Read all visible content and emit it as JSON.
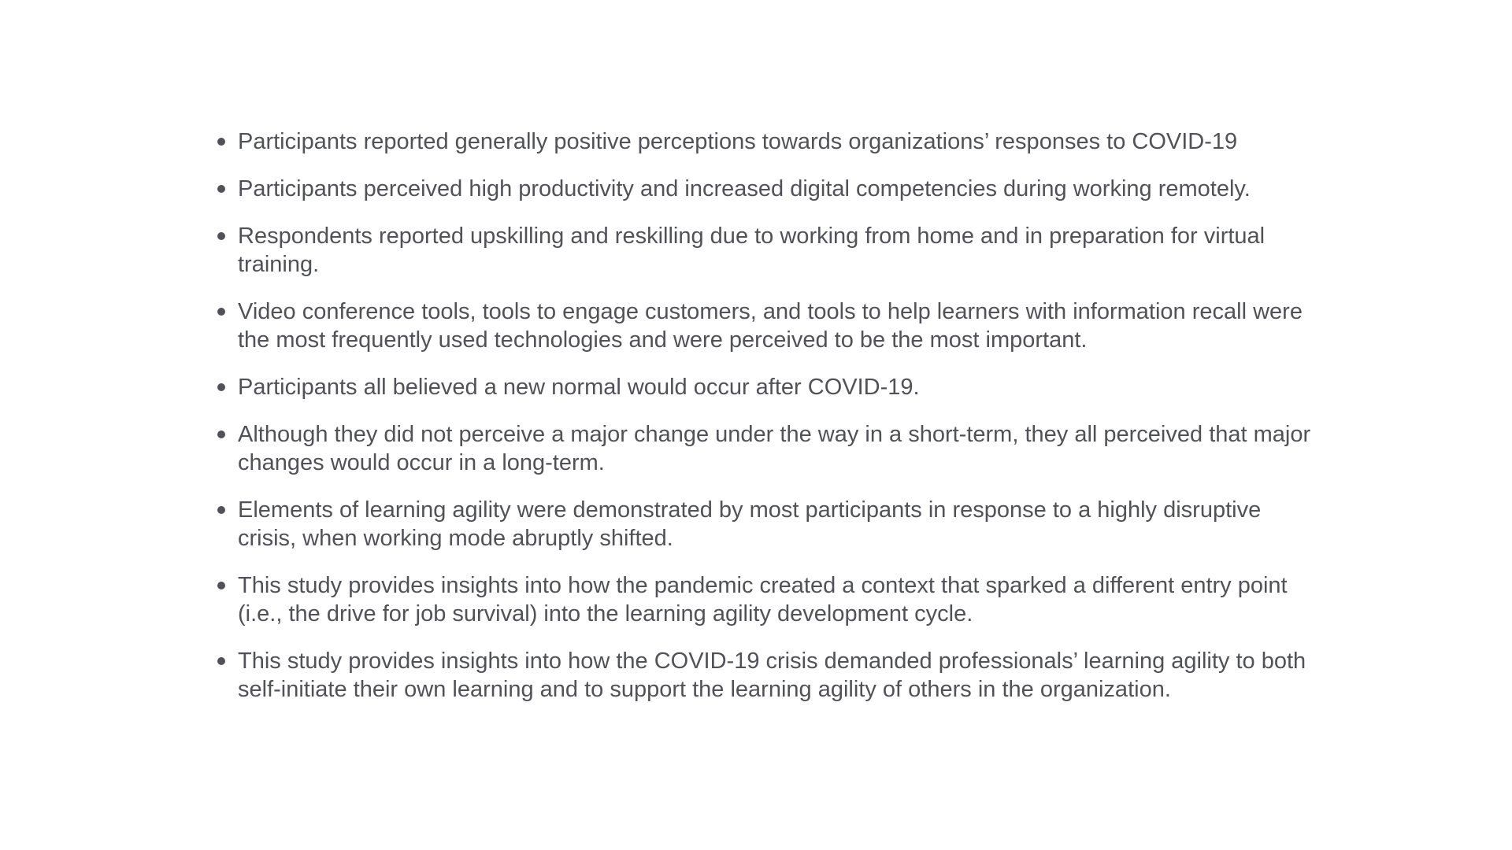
{
  "bullets": [
    "Participants reported generally positive perceptions towards organizations’ responses to COVID-19",
    "Participants perceived high productivity and increased digital competencies during working remotely.",
    "Respondents reported upskilling and reskilling due to working from home and in preparation for virtual training.",
    "Video conference tools, tools to engage customers, and tools to help learners with information recall were the most frequently used technologies and were perceived to be the most important.",
    "Participants all believed a new normal would occur after COVID-19.",
    "Although they did not perceive a major change under the way in a short-term, they all perceived that major changes would occur in a long-term.",
    "Elements of learning agility were demonstrated by most participants in response to a highly disruptive crisis, when working mode abruptly shifted.",
    "This study provides insights into how the pandemic created a context that sparked a different entry point (i.e., the drive for job survival) into the learning agility development cycle.",
    "This study provides insights into how the COVID-19 crisis demanded professionals’ learning agility to both self-initiate their own learning and to support the learning agility of others in the organization."
  ],
  "colors": {
    "text": "#505257",
    "background": "#ffffff"
  }
}
